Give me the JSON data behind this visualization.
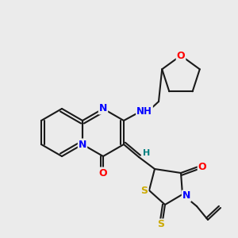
{
  "background_color": "#ebebeb",
  "bond_color": "#1a1a1a",
  "atom_colors": {
    "N": "#0000ff",
    "O": "#ff0000",
    "S": "#ccaa00",
    "C": "#1a1a1a",
    "H": "#008080"
  },
  "figsize": [
    3.0,
    3.0
  ],
  "dpi": 100
}
